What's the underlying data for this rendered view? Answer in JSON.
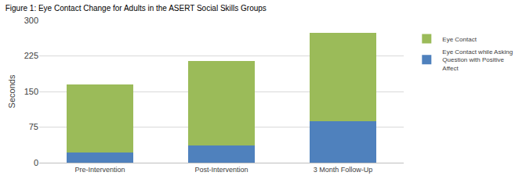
{
  "chart_data": {
    "type": "bar",
    "title": "Figure 1: Eye Contact Change for Adults in the ASERT Social Skills Groups",
    "y_label": "Seconds",
    "categories": [
      "Pre-Intervention",
      "Post-Intervention",
      "3 Month Follow-Up"
    ],
    "series": [
      {
        "name": "Eye Contact while Asking Question with Positive Affect",
        "color": "#4f81bd",
        "values": [
          21,
          36,
          87
        ]
      },
      {
        "name": "Eye Contact",
        "color": "#9bbb59",
        "values": [
          144,
          179,
          186
        ]
      }
    ],
    "stacked": true,
    "ylim": [
      0,
      300
    ],
    "yticks": [
      0,
      75,
      150,
      225,
      300
    ],
    "grid": true,
    "legend": "right"
  }
}
